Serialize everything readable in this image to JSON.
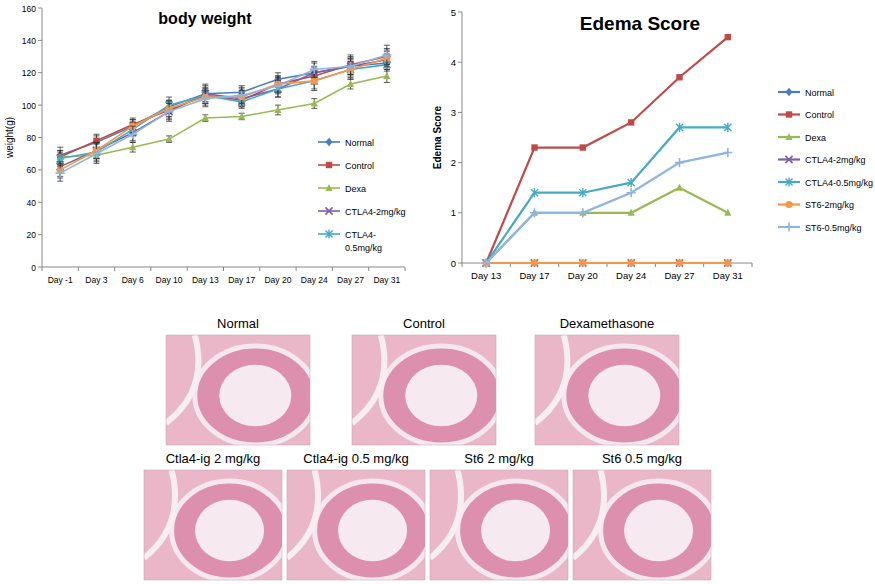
{
  "chart_data": [
    {
      "type": "line",
      "title": "body weight",
      "y_label": "weight(g)",
      "categories": [
        "Day -1",
        "Day 3",
        "Day 6",
        "Day 10",
        "Day 13",
        "Day 17",
        "Day 20",
        "Day 24",
        "Day 27",
        "Day 31"
      ],
      "ylim": [
        0,
        160
      ],
      "yticks": [
        0,
        20,
        40,
        60,
        80,
        100,
        120,
        140,
        160
      ],
      "grid": false,
      "legend": "right",
      "series": [
        {
          "name": "Normal",
          "color": "#4a7ebb",
          "marker": "diamond",
          "values": [
            69,
            77,
            87,
            99,
            107,
            108,
            116,
            120,
            124,
            126
          ],
          "errors": [
            5,
            4,
            4,
            4,
            5,
            4,
            4,
            4,
            5,
            4
          ]
        },
        {
          "name": "Control",
          "color": "#be4b48",
          "marker": "square",
          "values": [
            68,
            78,
            88,
            97,
            106,
            103,
            113,
            118,
            125,
            130
          ],
          "errors": [
            4,
            4,
            4,
            5,
            5,
            4,
            5,
            5,
            6,
            5
          ]
        },
        {
          "name": "Dexa",
          "color": "#98b954",
          "marker": "triangle",
          "values": [
            68,
            69,
            74,
            79,
            92,
            93,
            97,
            101,
            113,
            118
          ],
          "errors": [
            3,
            3,
            3,
            2,
            2,
            2,
            3,
            3,
            3,
            4
          ]
        },
        {
          "name": "CTLA4-2mg/kg",
          "color": "#7d60a0",
          "marker": "x",
          "values": [
            62,
            72,
            83,
            96,
            107,
            104,
            110,
            120,
            124,
            128
          ],
          "errors": [
            6,
            5,
            5,
            6,
            6,
            5,
            5,
            6,
            6,
            5
          ]
        },
        {
          "name": "CTLA4-0.5mg/kg",
          "color": "#46aac5",
          "marker": "star",
          "values": [
            67,
            71,
            85,
            100,
            106,
            102,
            110,
            115,
            122,
            125
          ],
          "errors": [
            5,
            6,
            4,
            5,
            4,
            4,
            5,
            5,
            5,
            4
          ]
        },
        {
          "color": "#f79646",
          "marker": "circle",
          "values": [
            60,
            72,
            87,
            98,
            105,
            105,
            113,
            115,
            122,
            129
          ],
          "errors": [
            5,
            5,
            4,
            5,
            5,
            5,
            5,
            6,
            6,
            5
          ]
        },
        {
          "color": "#8eb4e3",
          "marker": "plus",
          "values": [
            58,
            70,
            82,
            96,
            104,
            106,
            112,
            122,
            124,
            131
          ],
          "errors": [
            5,
            6,
            5,
            5,
            5,
            5,
            5,
            5,
            5,
            6
          ]
        }
      ]
    },
    {
      "type": "line",
      "title": "Edema Score",
      "y_label": "Edema Score",
      "categories": [
        "Day 13",
        "Day 17",
        "Day 20",
        "Day 24",
        "Day 27",
        "Day 31"
      ],
      "ylim": [
        0,
        5
      ],
      "yticks": [
        0,
        1,
        2,
        3,
        4,
        5
      ],
      "grid": false,
      "legend": "right",
      "series": [
        {
          "name": "Normal",
          "color": "#4a7ebb",
          "marker": "diamond",
          "values": [
            0,
            0,
            0,
            0,
            0,
            0
          ]
        },
        {
          "name": "Control",
          "color": "#be4b48",
          "marker": "square",
          "values": [
            0,
            2.3,
            2.3,
            2.8,
            3.7,
            4.5
          ]
        },
        {
          "name": "Dexa",
          "color": "#98b954",
          "marker": "triangle",
          "values": [
            0,
            1,
            1,
            1,
            1.5,
            1
          ]
        },
        {
          "name": "CTLA4-2mg/kg",
          "color": "#7d60a0",
          "marker": "x",
          "values": [
            0,
            0,
            0,
            0,
            0,
            0
          ]
        },
        {
          "name": "CTLA4-0.5mg/kg",
          "color": "#46aac5",
          "marker": "star",
          "values": [
            0,
            1.4,
            1.4,
            1.6,
            2.7,
            2.7
          ]
        },
        {
          "name": "ST6-2mg/kg",
          "color": "#f79646",
          "marker": "circle",
          "values": [
            0,
            0,
            0,
            0,
            0,
            0
          ]
        },
        {
          "name": "ST6-0.5mg/kg",
          "color": "#8eb4e3",
          "marker": "plus",
          "values": [
            0,
            1,
            1,
            1.4,
            2,
            2.2
          ]
        }
      ]
    }
  ],
  "histology": {
    "panels": [
      "Normal",
      "Control",
      "Dexamethasone",
      "Ctla4-ig 2 mg/kg",
      "Ctla4-ig 0.5 mg/kg",
      "St6 2 mg/kg",
      "St6 0.5 mg/kg"
    ]
  }
}
